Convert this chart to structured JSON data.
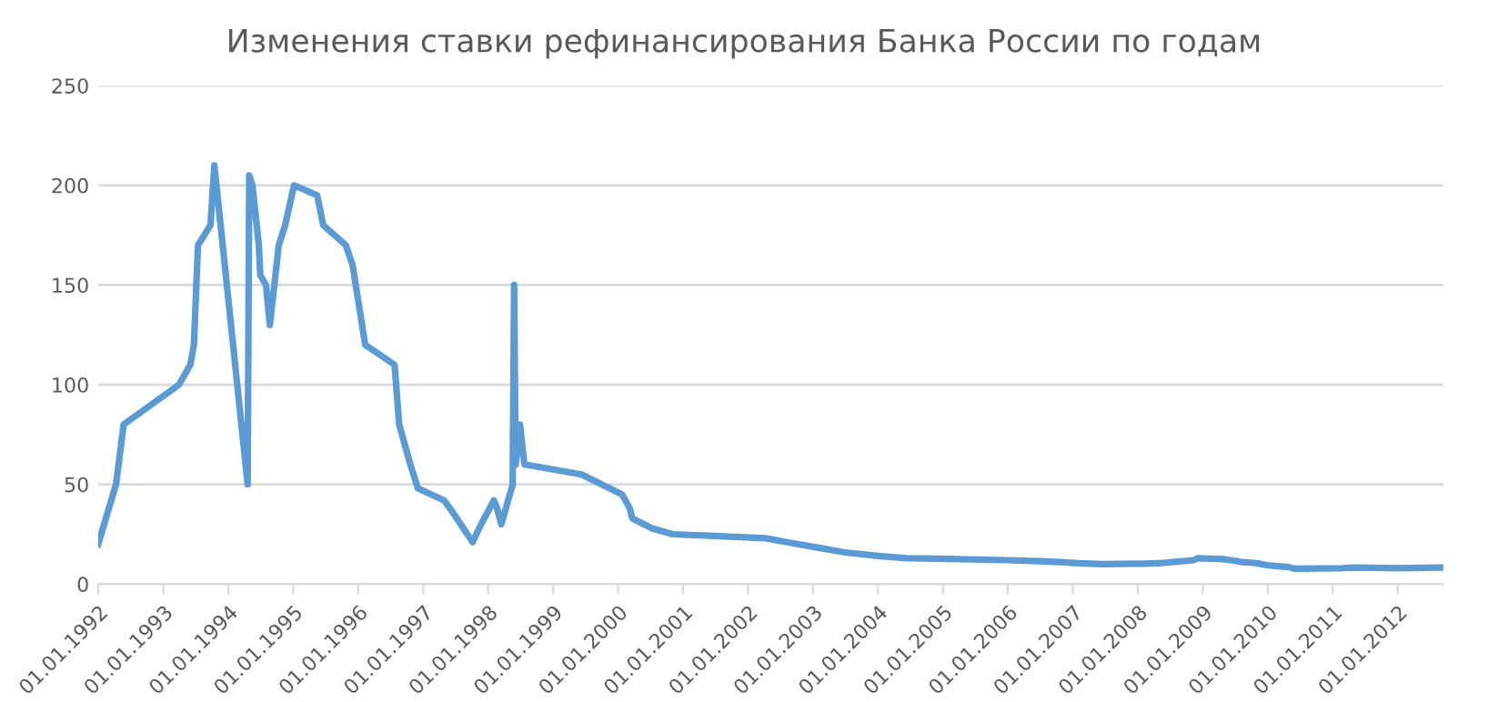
{
  "chart_data": {
    "type": "line",
    "title": "Изменения ставки рефинансирования Банка России по годам",
    "x": [
      "1992-01-01",
      "1992-04-10",
      "1992-05-23",
      "1993-03-30",
      "1993-06-02",
      "1993-06-22",
      "1993-07-15",
      "1993-09-23",
      "1993-10-15",
      "1994-04-20",
      "1994-04-29",
      "1994-05-17",
      "1994-06-22",
      "1994-06-30",
      "1994-08-01",
      "1994-08-23",
      "1994-10-12",
      "1994-11-17",
      "1995-01-06",
      "1995-05-16",
      "1995-06-19",
      "1995-10-24",
      "1995-12-01",
      "1996-02-10",
      "1996-07-24",
      "1996-08-19",
      "1996-10-21",
      "1996-12-02",
      "1997-04-28",
      "1997-06-16",
      "1997-10-06",
      "1997-11-11",
      "1998-02-02",
      "1998-02-17",
      "1998-03-16",
      "1998-05-19",
      "1998-05-27",
      "1998-06-05",
      "1998-06-29",
      "1998-07-24",
      "1999-06-10",
      "2000-01-24",
      "2000-03-07",
      "2000-03-21",
      "2000-07-10",
      "2000-11-04",
      "2002-04-09",
      "2002-08-07",
      "2003-02-17",
      "2003-06-21",
      "2004-01-15",
      "2004-06-15",
      "2005-12-26",
      "2006-06-26",
      "2006-10-23",
      "2007-01-29",
      "2007-06-19",
      "2008-02-04",
      "2008-04-29",
      "2008-06-10",
      "2008-07-14",
      "2008-11-12",
      "2008-12-01",
      "2009-04-24",
      "2009-06-05",
      "2009-07-13",
      "2009-08-10",
      "2009-09-30",
      "2009-10-30",
      "2009-11-25",
      "2009-12-28",
      "2010-02-24",
      "2010-03-29",
      "2010-04-30",
      "2010-06-01",
      "2011-02-28",
      "2011-05-03",
      "2011-12-26",
      "2012-09-14"
    ],
    "series": [
      {
        "color": "#5b9bd5",
        "values": [
          20,
          50,
          80,
          100,
          110,
          120,
          170,
          180,
          210,
          50,
          205,
          200,
          170,
          155,
          150,
          130,
          170,
          180,
          200,
          195,
          180,
          170,
          160,
          120,
          110,
          80,
          60,
          48,
          42,
          36,
          21,
          28,
          42,
          39,
          30,
          50,
          150,
          60,
          80,
          60,
          55,
          45,
          38,
          33,
          28,
          25,
          23,
          21,
          18,
          16,
          14,
          13,
          12,
          11.5,
          11,
          10.5,
          10,
          10.25,
          10.5,
          10.75,
          11,
          12,
          13,
          12.5,
          12,
          11.5,
          11,
          10.75,
          10.5,
          10,
          9.5,
          9,
          8.75,
          8.5,
          7.75,
          8,
          8.25,
          8,
          8.25
        ]
      }
    ],
    "xlim": [
      "1992-01-01",
      "2012-09-14"
    ],
    "xticks": [
      {
        "value": "1992-01-01",
        "label": "01.01.1992"
      },
      {
        "value": "1993-01-01",
        "label": "01.01.1993"
      },
      {
        "value": "1994-01-01",
        "label": "01.01.1994"
      },
      {
        "value": "1995-01-01",
        "label": "01.01.1995"
      },
      {
        "value": "1996-01-01",
        "label": "01.01.1996"
      },
      {
        "value": "1997-01-01",
        "label": "01.01.1997"
      },
      {
        "value": "1998-01-01",
        "label": "01.01.1998"
      },
      {
        "value": "1999-01-01",
        "label": "01.01.1999"
      },
      {
        "value": "2000-01-01",
        "label": "01.01.2000"
      },
      {
        "value": "2001-01-01",
        "label": "01.01.2001"
      },
      {
        "value": "2002-01-01",
        "label": "01.01.2002"
      },
      {
        "value": "2003-01-01",
        "label": "01.01.2003"
      },
      {
        "value": "2004-01-01",
        "label": "01.01.2004"
      },
      {
        "value": "2005-01-01",
        "label": "01.01.2005"
      },
      {
        "value": "2006-01-01",
        "label": "01.01.2006"
      },
      {
        "value": "2007-01-01",
        "label": "01.01.2007"
      },
      {
        "value": "2008-01-01",
        "label": "01.01.2008"
      },
      {
        "value": "2009-01-01",
        "label": "01.01.2009"
      },
      {
        "value": "2010-01-01",
        "label": "01.01.2010"
      },
      {
        "value": "2011-01-01",
        "label": "01.01.2011"
      },
      {
        "value": "2012-01-01",
        "label": "01.01.2012"
      }
    ],
    "ylim": [
      0,
      250
    ],
    "yticks": [
      0,
      50,
      100,
      150,
      200,
      250
    ],
    "grid": "y",
    "marker": "none",
    "line_style": "solid"
  }
}
